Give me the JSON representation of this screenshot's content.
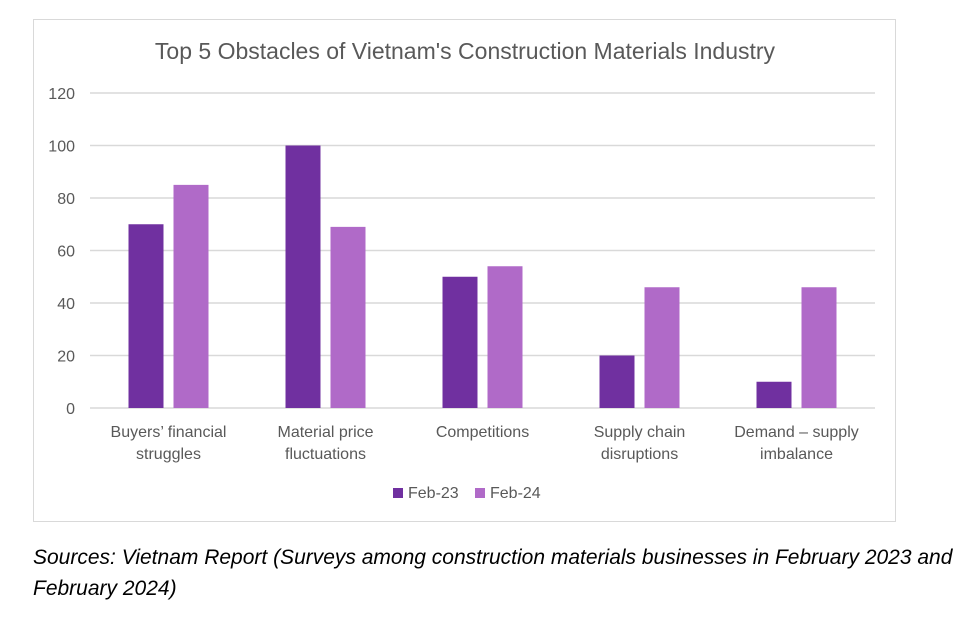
{
  "chart_data": {
    "type": "bar",
    "title": "Top 5 Obstacles of Vietnam's Construction Materials Industry",
    "categories": [
      [
        "Buyers’ financial",
        "struggles"
      ],
      [
        "Material price",
        "fluctuations"
      ],
      [
        "Competitions"
      ],
      [
        "Supply chain",
        "disruptions"
      ],
      [
        "Demand – supply",
        "imbalance"
      ]
    ],
    "series": [
      {
        "name": "Feb-23",
        "color": "#7030a0",
        "values": [
          70,
          100,
          50,
          20,
          10
        ]
      },
      {
        "name": "Feb-24",
        "color": "#b06ac8",
        "values": [
          85,
          69,
          54,
          46,
          46
        ]
      }
    ],
    "ylim": [
      0,
      120
    ],
    "yticks": [
      0,
      20,
      40,
      60,
      80,
      100,
      120
    ],
    "grid": true,
    "legend": "bottom"
  },
  "caption": "Sources: Vietnam Report (Surveys among construction materials businesses in February 2023 and February 2024)"
}
